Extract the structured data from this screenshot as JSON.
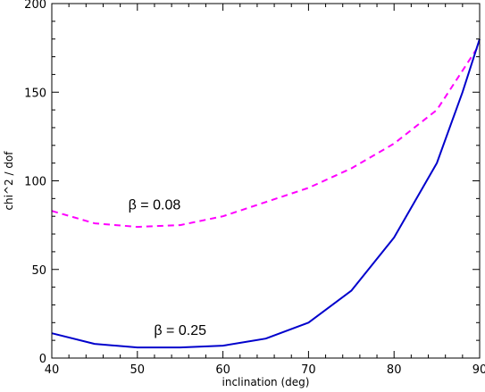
{
  "chart_data": {
    "type": "line",
    "xlabel": "inclination (deg)",
    "ylabel": "chi^2 / dof",
    "xlim": [
      40,
      90
    ],
    "ylim": [
      0,
      200
    ],
    "x_ticks": [
      40,
      50,
      60,
      70,
      80,
      90
    ],
    "y_ticks": [
      0,
      50,
      100,
      150,
      200
    ],
    "x_tick_labels": [
      "40",
      "50",
      "60",
      "70",
      "80",
      "90"
    ],
    "y_tick_labels": [
      "0",
      "50",
      "100",
      "150",
      "200"
    ],
    "grid": false,
    "series": [
      {
        "color": "#ff00ff",
        "line_style": "dashed",
        "points": [
          {
            "x": 40,
            "y": 83
          },
          {
            "x": 45,
            "y": 76
          },
          {
            "x": 50,
            "y": 74
          },
          {
            "x": 55,
            "y": 75
          },
          {
            "x": 60,
            "y": 80
          },
          {
            "x": 65,
            "y": 88
          },
          {
            "x": 70,
            "y": 96
          },
          {
            "x": 75,
            "y": 107
          },
          {
            "x": 80,
            "y": 121
          },
          {
            "x": 85,
            "y": 140
          },
          {
            "x": 90,
            "y": 177
          }
        ]
      },
      {
        "color": "#0000cc",
        "line_style": "solid",
        "points": [
          {
            "x": 40,
            "y": 14
          },
          {
            "x": 45,
            "y": 8
          },
          {
            "x": 50,
            "y": 6
          },
          {
            "x": 55,
            "y": 6
          },
          {
            "x": 60,
            "y": 7
          },
          {
            "x": 65,
            "y": 11
          },
          {
            "x": 70,
            "y": 20
          },
          {
            "x": 75,
            "y": 38
          },
          {
            "x": 80,
            "y": 68
          },
          {
            "x": 85,
            "y": 110
          },
          {
            "x": 88,
            "y": 150
          },
          {
            "x": 90,
            "y": 180
          }
        ]
      }
    ],
    "annotations": [
      {
        "text": "β = 0.08",
        "x": 52,
        "y": 84
      },
      {
        "text": "β = 0.25",
        "x": 55,
        "y": 13
      }
    ]
  }
}
